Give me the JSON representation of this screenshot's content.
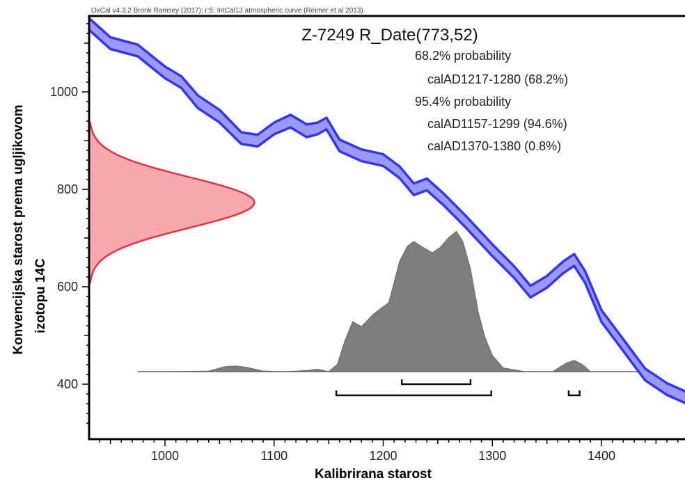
{
  "chart_data": {
    "type": "area",
    "credit": "OxCal v4.3.2 Bronk Ramsey (2017); r:5; IntCal13 atmospheric curve (Reimer et al 2013)",
    "title": "Z-7249 R_Date(773,52)",
    "xlabel": "Kalibrirana starost",
    "ylabel_lines": [
      "Konvencijska starost prema ugljikovom",
      "izotopu 14C"
    ],
    "xlim": [
      930,
      1480
    ],
    "ylim": [
      300,
      1150
    ],
    "xticks": [
      1000,
      1100,
      1200,
      1300,
      1400
    ],
    "yticks": [
      400,
      600,
      800,
      1000
    ],
    "probability": {
      "sigma1_label": "68.2% probability",
      "sigma1_ranges": [
        "calAD1217-1280 (68.2%)"
      ],
      "sigma2_label": "95.4% probability",
      "sigma2_ranges": [
        "calAD1157-1299 (94.6%)",
        "calAD1370-1380 (0.8%)"
      ]
    },
    "calibration_curve": {
      "name": "IntCal13",
      "color": "#3333ff",
      "fill": "#9a9af5",
      "x": [
        930,
        950,
        975,
        1000,
        1015,
        1030,
        1050,
        1070,
        1085,
        1100,
        1115,
        1130,
        1140,
        1148,
        1160,
        1180,
        1200,
        1215,
        1228,
        1240,
        1255,
        1275,
        1300,
        1320,
        1335,
        1350,
        1365,
        1375,
        1385,
        1400,
        1420,
        1440,
        1460,
        1480
      ],
      "y": [
        1140,
        1100,
        1085,
        1040,
        1020,
        980,
        950,
        905,
        900,
        925,
        940,
        920,
        925,
        935,
        890,
        870,
        860,
        835,
        800,
        810,
        780,
        735,
        675,
        630,
        590,
        610,
        640,
        655,
        620,
        540,
        480,
        420,
        390,
        370
      ],
      "halfwidth": [
        12,
        12,
        12,
        12,
        12,
        13,
        13,
        12,
        12,
        12,
        13,
        13,
        12,
        12,
        12,
        12,
        12,
        12,
        12,
        12,
        12,
        12,
        12,
        12,
        12,
        12,
        12,
        12,
        12,
        12,
        12,
        12,
        12,
        12
      ]
    },
    "radiocarbon_date": {
      "mean": 773,
      "sigma": 52,
      "color": "#e8323b",
      "fill": "#f7a8ac",
      "peak_year": 1082
    },
    "calibrated_distribution": {
      "color": "#7d7d7d",
      "x": [
        975,
        1000,
        1040,
        1055,
        1065,
        1075,
        1090,
        1110,
        1130,
        1140,
        1150,
        1158,
        1165,
        1172,
        1180,
        1190,
        1197,
        1205,
        1215,
        1222,
        1228,
        1235,
        1245,
        1252,
        1260,
        1267,
        1273,
        1280,
        1287,
        1293,
        1300,
        1310,
        1330,
        1355,
        1368,
        1375,
        1382,
        1390,
        1410,
        1440
      ],
      "y": [
        0,
        0,
        0.005,
        0.04,
        0.045,
        0.035,
        0.005,
        0.0,
        0.01,
        0.02,
        0.0,
        0.06,
        0.25,
        0.4,
        0.36,
        0.45,
        0.5,
        0.55,
        0.88,
        1.0,
        1.04,
        1.0,
        0.95,
        0.99,
        1.07,
        1.12,
        1.04,
        0.82,
        0.48,
        0.28,
        0.13,
        0.03,
        0.0,
        0.0,
        0.07,
        0.09,
        0.06,
        0.0,
        0.0,
        0.0
      ]
    },
    "bracket_rows": [
      {
        "row": 1,
        "ranges": [
          [
            1217,
            1280
          ]
        ]
      },
      {
        "row": 2,
        "ranges": [
          [
            1157,
            1299
          ],
          [
            1370,
            1380
          ]
        ]
      }
    ],
    "grid": false
  }
}
